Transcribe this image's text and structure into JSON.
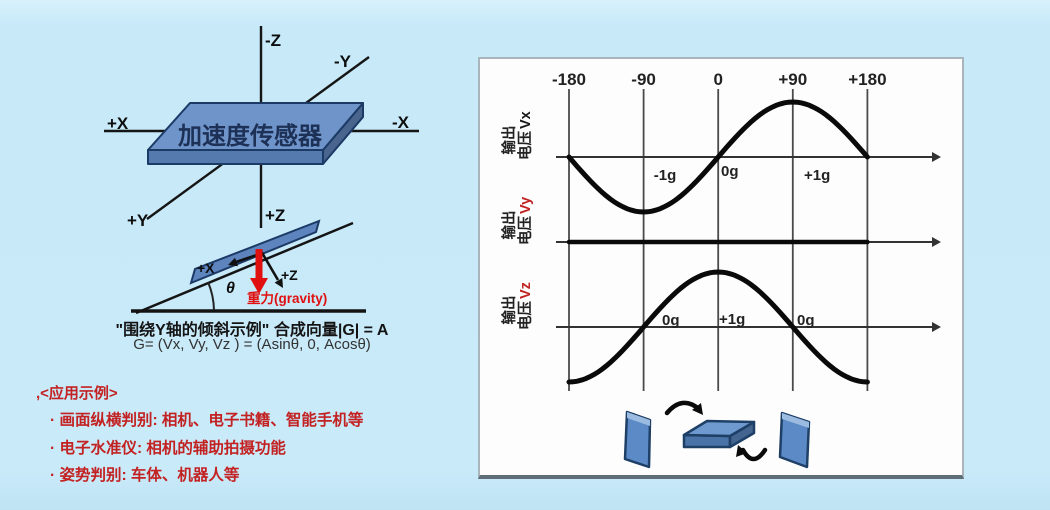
{
  "colors": {
    "background": "#c9eaf9",
    "panel_background": "#fdfdfd",
    "board_fill": "#6f94c9",
    "board_edge": "#1b3a66",
    "red_text": "#c32222",
    "gravity_arrow": "#e01010",
    "curve_black": "#0a0a0a"
  },
  "sensor_diagram": {
    "board_label": "加速度传感器",
    "axis_labels": {
      "neg_z": "-Z",
      "neg_y": "-Y",
      "pos_x": "+X",
      "neg_x": "-X",
      "pos_y": "+Y",
      "pos_z": "+Z"
    }
  },
  "tilt_diagram": {
    "axis_x": "+X",
    "axis_z": "+Z",
    "angle": "θ",
    "gravity": "重力(gravity)",
    "caption": "\"围绕Y轴的倾斜示例\" 合成向量|G| = A",
    "formula": "G= (Vx, Vy, Vz ) = (Asinθ, 0, Acosθ)"
  },
  "applications": {
    "header": ",<应用示例>",
    "items": [
      "· 画面纵横判别: 相机、电子书籍、智能手机等",
      "· 电子水准仪: 相机的辅助拍摄功能",
      "· 姿势判别: 车体、机器人等"
    ]
  },
  "right_panel": {
    "icons": [
      "tilted-plate-icon",
      "rotate-cw-arrow-icon",
      "flat-plate-icon",
      "rotate-ccw-arrow-icon",
      "tilted-plate-icon"
    ]
  },
  "chart_data": {
    "type": "line",
    "title": "",
    "x_degrees": [
      -180,
      -90,
      0,
      90,
      180
    ],
    "x_tick_labels": [
      "-180",
      "-90",
      "0",
      "+90",
      "+180"
    ],
    "ylim_g": [
      -1,
      1
    ],
    "grid": "vertical gridlines at ticks",
    "legend": "none",
    "series": [
      {
        "name": "输出电压Vx",
        "ylabel_line1": "输出",
        "ylabel_line2": "电压",
        "ylabel_var": "Vx",
        "var_color": "#1a1a1a",
        "waveform": "sin",
        "values_g": [
          0,
          -1,
          0,
          1,
          0
        ],
        "point_labels": [
          "-1g",
          "0g",
          "+1g"
        ]
      },
      {
        "name": "输出电压Vy",
        "ylabel_line1": "输出",
        "ylabel_line2": "电压",
        "ylabel_var": "Vy",
        "var_color": "#c32222",
        "waveform": "flat",
        "values_g": [
          0,
          0,
          0,
          0,
          0
        ],
        "point_labels": []
      },
      {
        "name": "输出电压Vz",
        "ylabel_line1": "输出",
        "ylabel_line2": "电压",
        "ylabel_var": "Vz",
        "var_color": "#c32222",
        "waveform": "cos",
        "values_g": [
          -1,
          0,
          1,
          0,
          -1
        ],
        "point_labels": [
          "0g",
          "+1g",
          "0g"
        ]
      }
    ]
  }
}
